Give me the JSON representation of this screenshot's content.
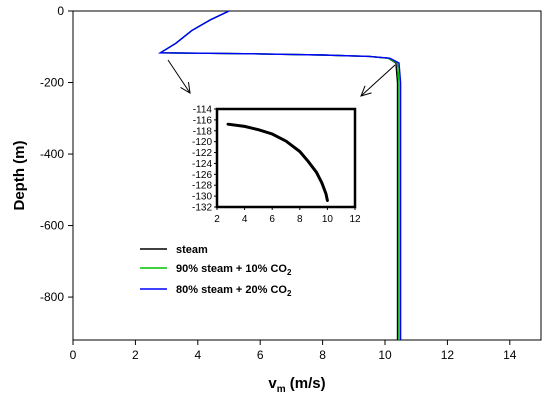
{
  "chart_data": [
    {
      "type": "line",
      "xlabel_main": "v",
      "xlabel_sub": "m",
      "xlabel_unit": " (m/s)",
      "ylabel": "Depth (m)",
      "xlim": [
        0,
        15
      ],
      "ylim": [
        -920,
        0
      ],
      "xticks": [
        0,
        2,
        4,
        6,
        8,
        10,
        12,
        14
      ],
      "yticks": [
        0,
        -200,
        -400,
        -600,
        -800
      ],
      "grid": false,
      "legend_position": "lower-left",
      "series": [
        {
          "name": "steam",
          "color": "#000000",
          "x": [
            5.0,
            4.4,
            3.8,
            3.3,
            2.8,
            4.0,
            6.0,
            8.0,
            9.5,
            10.1,
            10.35,
            10.4,
            10.4,
            10.4
          ],
          "y": [
            0,
            -25,
            -55,
            -90,
            -117,
            -118,
            -120,
            -123,
            -127,
            -132,
            -145,
            -200,
            -500,
            -920
          ]
        },
        {
          "name_prefix": "90% steam + 10% CO",
          "name_sub": "2",
          "color": "#00c000",
          "x": [
            5.0,
            4.4,
            3.8,
            3.3,
            2.8,
            4.0,
            6.0,
            8.0,
            9.5,
            10.1,
            10.4,
            10.45,
            10.45,
            10.45
          ],
          "y": [
            0,
            -25,
            -55,
            -90,
            -117,
            -118,
            -120,
            -123,
            -127,
            -132,
            -145,
            -200,
            -500,
            -920
          ]
        },
        {
          "name_prefix": "80% steam + 20% CO",
          "name_sub": "2",
          "color": "#0000ff",
          "x": [
            5.0,
            4.4,
            3.8,
            3.3,
            2.8,
            4.0,
            6.0,
            8.0,
            9.5,
            10.15,
            10.45,
            10.5,
            10.5,
            10.5
          ],
          "y": [
            0,
            -25,
            -55,
            -90,
            -117,
            -118,
            -120,
            -123,
            -127,
            -132,
            -145,
            -200,
            -500,
            -920
          ]
        }
      ]
    },
    {
      "type": "line",
      "xlim": [
        2,
        12
      ],
      "ylim": [
        -132,
        -114
      ],
      "xticks": [
        2,
        4,
        6,
        8,
        10,
        12
      ],
      "yticks": [
        -114,
        -116,
        -118,
        -120,
        -122,
        -124,
        -126,
        -128,
        -130,
        -132
      ],
      "series": [
        {
          "color": "#000000",
          "x": [
            2.8,
            4,
            5,
            6,
            7,
            8,
            8.6,
            9.2,
            9.6,
            9.9,
            10.0
          ],
          "y": [
            -116.8,
            -117.2,
            -117.8,
            -118.6,
            -119.9,
            -121.8,
            -123.6,
            -125.6,
            -127.6,
            -129.6,
            -130.8
          ]
        }
      ]
    }
  ]
}
